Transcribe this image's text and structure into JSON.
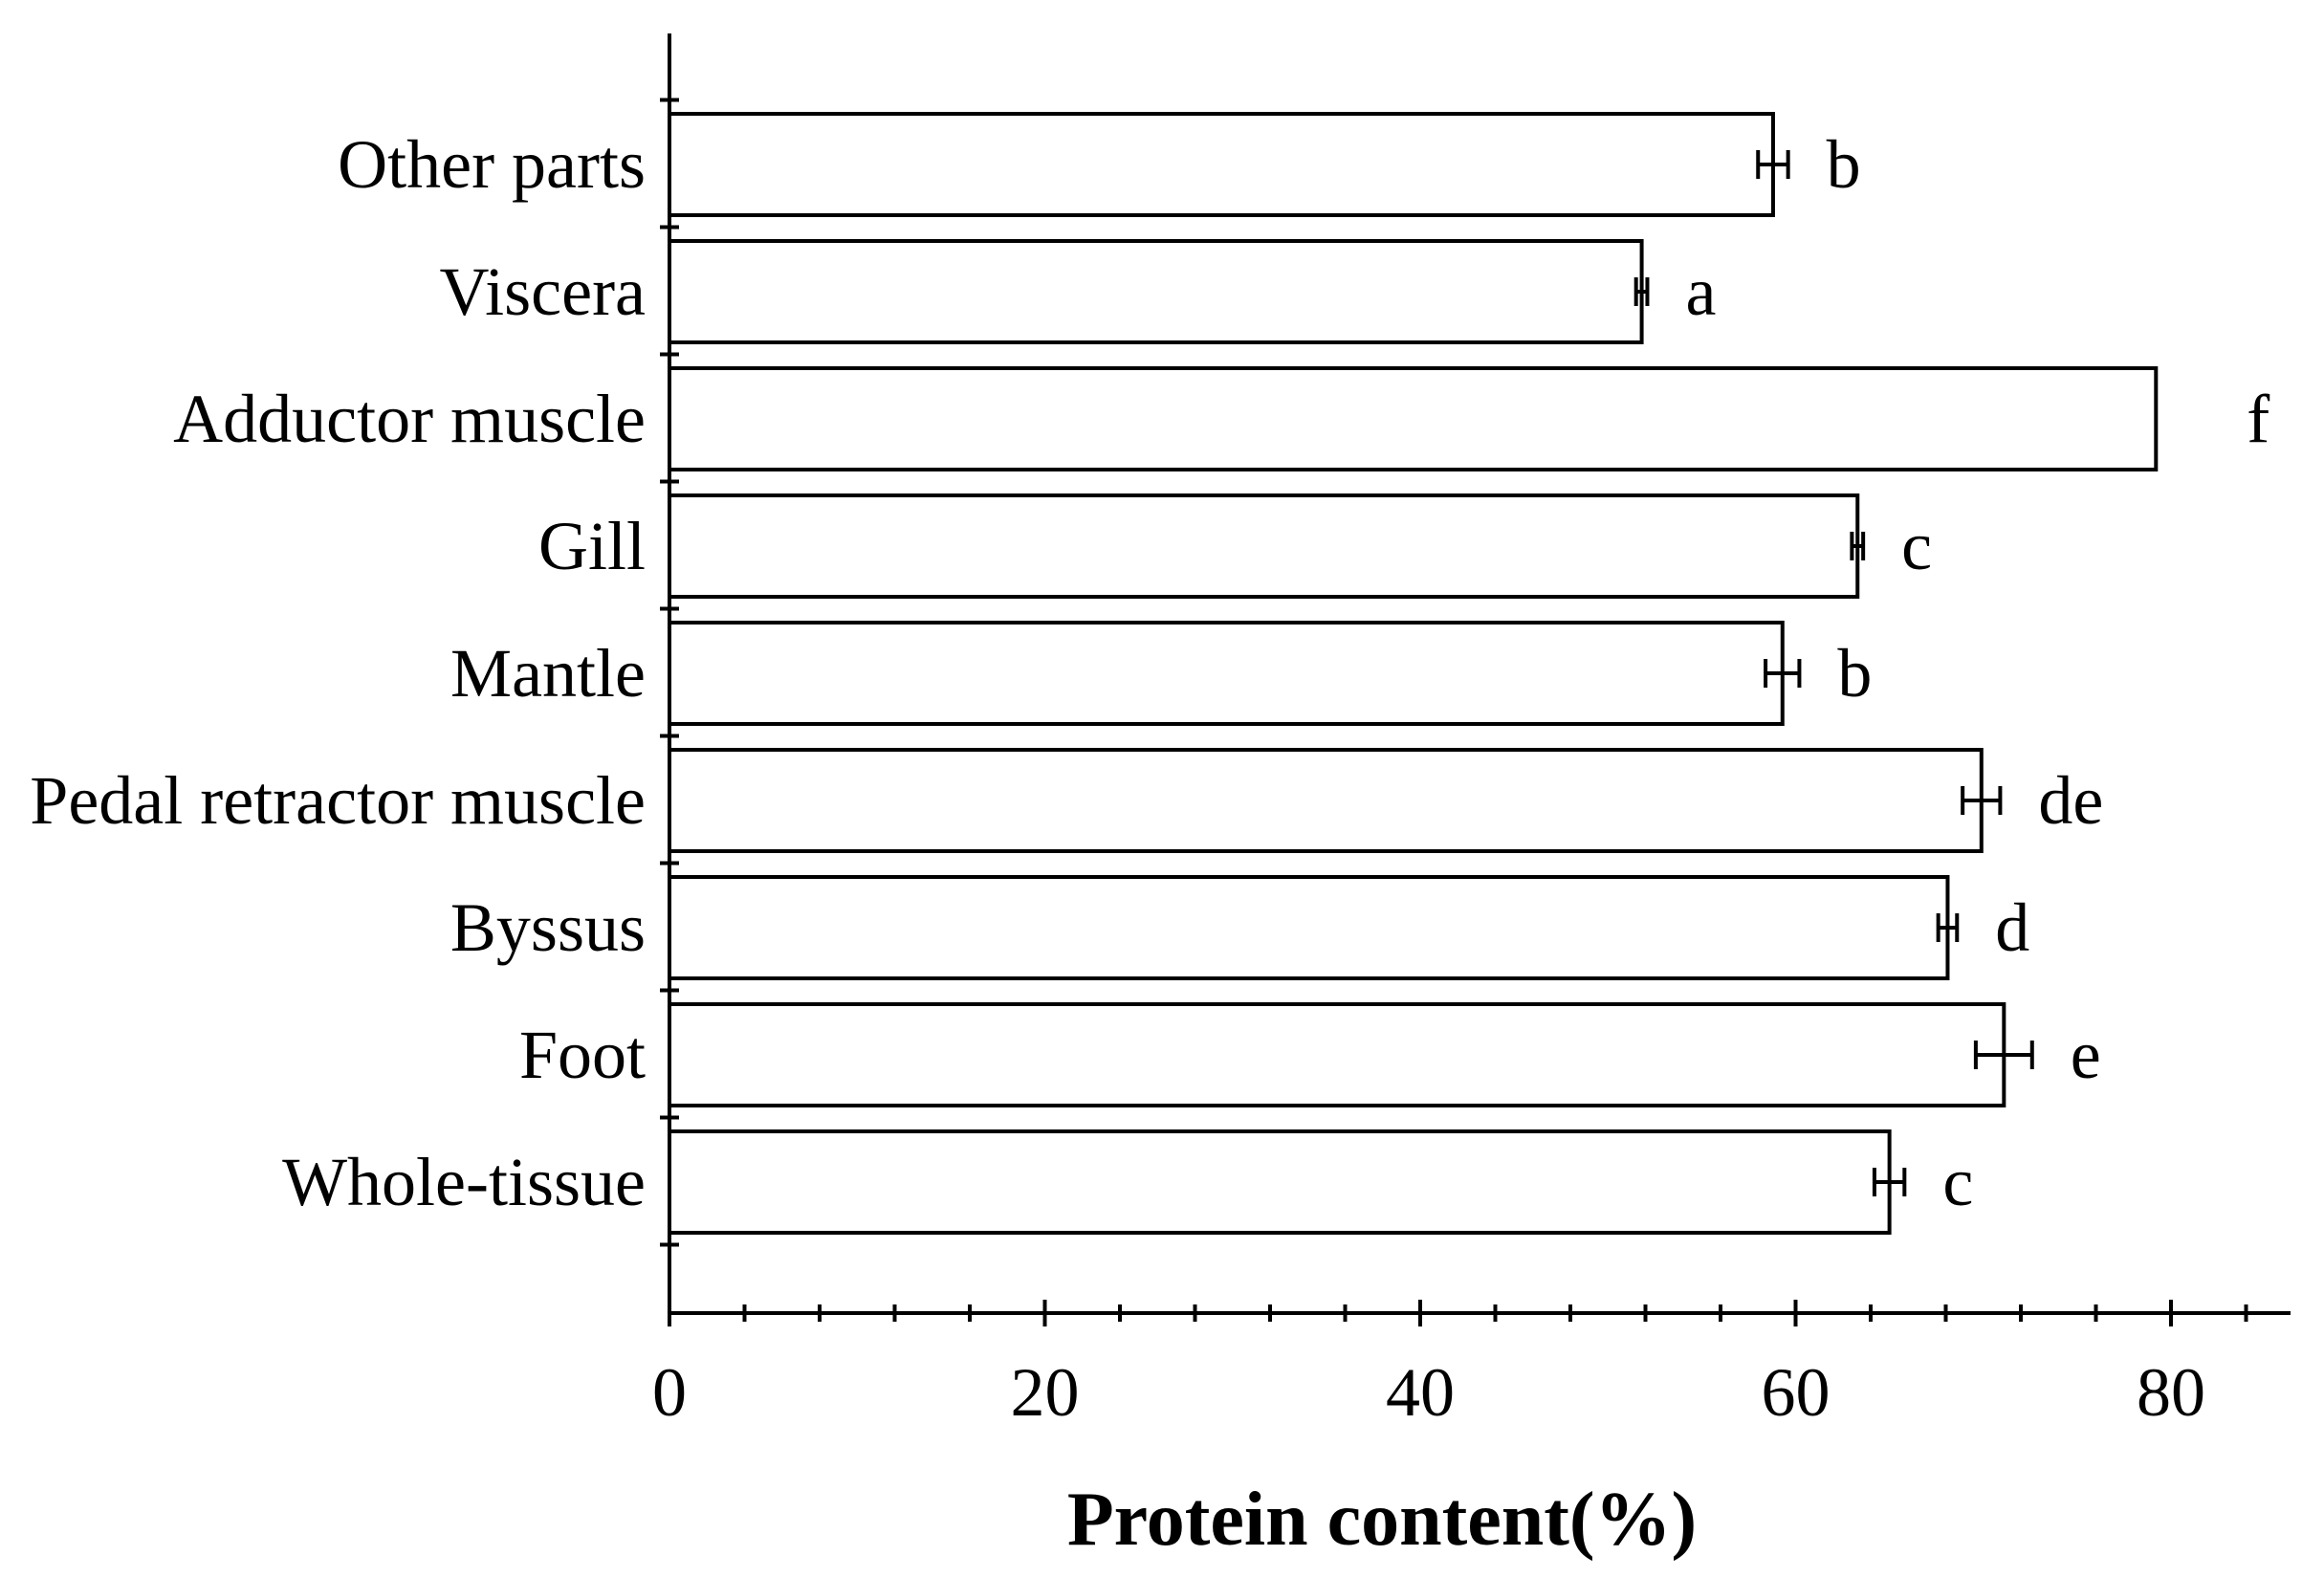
{
  "chart_data": {
    "type": "bar",
    "orientation": "horizontal",
    "categories": [
      "Other parts",
      "Viscera",
      "Adductor muscle",
      "Gill",
      "Mantle",
      "Pedal retractor muscle",
      "Byssus",
      "Foot",
      "Whole-tissue"
    ],
    "values": [
      58.8,
      51.8,
      79.2,
      63.3,
      59.3,
      69.9,
      68.1,
      71.1,
      65.0
    ],
    "errors": [
      0.8,
      0.3,
      0.0,
      0.3,
      0.9,
      1.0,
      0.5,
      1.5,
      0.8
    ],
    "significance": [
      "b",
      "a",
      "f",
      "c",
      "b",
      "de",
      "d",
      "e",
      "c"
    ],
    "xlabel": "Protein content(%)",
    "ylabel": "",
    "title": "",
    "xlim": [
      0,
      85
    ],
    "x_ticks": [
      0,
      20,
      40,
      60,
      80
    ],
    "x_tick_labels": [
      "0",
      "20",
      "40",
      "60",
      "80"
    ],
    "grid": false,
    "legend": "none",
    "colors": {
      "bar_fill": "#ffffff",
      "bar_stroke": "#000000",
      "axis": "#000000"
    }
  }
}
